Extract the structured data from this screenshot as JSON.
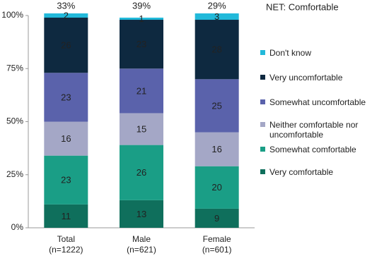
{
  "chart_data": {
    "type": "stacked_bar",
    "categories": [
      "Total",
      "Male",
      "Female"
    ],
    "category_notes": [
      "(n=1222)",
      "(n=621)",
      "(n=601)"
    ],
    "series": [
      {
        "name": "Very comfortable",
        "color": "#0f6f5c",
        "values": [
          11,
          13,
          9
        ]
      },
      {
        "name": "Somewhat comfortable",
        "color": "#1a9e86",
        "values": [
          23,
          26,
          20
        ]
      },
      {
        "name": "Neither comfortable nor uncomfortable",
        "color": "#a4a7c6",
        "values": [
          16,
          15,
          16
        ]
      },
      {
        "name": "Somewhat uncomfortable",
        "color": "#5a62ab",
        "values": [
          23,
          21,
          25
        ]
      },
      {
        "name": "Very uncomfortable",
        "color": "#0e2940",
        "values": [
          26,
          23,
          28
        ]
      },
      {
        "name": "Don't know",
        "color": "#22b9da",
        "values": [
          2,
          1,
          3
        ]
      }
    ],
    "net": {
      "title": "NET: Comfortable",
      "values": [
        33,
        39,
        29
      ],
      "value_labels": [
        "33%",
        "39%",
        "29%"
      ]
    },
    "ylim": [
      0,
      100
    ],
    "yticks": [
      {
        "value": 0,
        "label": "0%"
      },
      {
        "value": 25,
        "label": "25%"
      },
      {
        "value": 50,
        "label": "50%"
      },
      {
        "value": 75,
        "label": "75%"
      },
      {
        "value": 100,
        "label": "100%"
      }
    ],
    "legend": "right"
  }
}
